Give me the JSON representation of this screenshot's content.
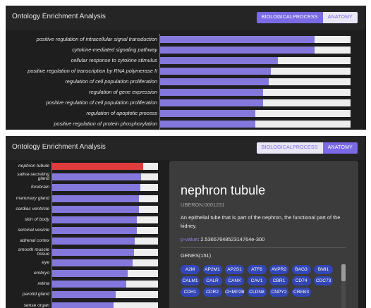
{
  "panel1": {
    "title": "Ontology Enrichment Analysis",
    "tabs": [
      {
        "label": "BIOLOGICALPROCESS",
        "active": true
      },
      {
        "label": "ANATOMY",
        "active": false
      }
    ]
  },
  "panel2": {
    "title": "Ontology Enrichment Analysis",
    "tabs": [
      {
        "label": "BIOLOGICALPROCESS",
        "active": false
      },
      {
        "label": "ANATOMY",
        "active": true
      }
    ]
  },
  "chart_data": [
    {
      "type": "bar",
      "orientation": "horizontal",
      "categories": [
        "positive regulation of intracellular signal transduction",
        "cytokine-mediated signaling pathway",
        "cellular response to cytokine stimulus",
        "positive regulation of transcription by RNA polymerase II",
        "regulation of cell population proliferation",
        "regulation of gene expression",
        "positive regulation of cell population proliferation",
        "regulation of apoptotic process",
        "positive regulation of protein phosphorylation"
      ],
      "values": [
        0.81,
        0.81,
        0.62,
        0.58,
        0.57,
        0.54,
        0.54,
        0.5,
        0.5
      ],
      "colors": {
        "bar": "#8478dc",
        "track": "#eeeeee"
      }
    },
    {
      "type": "bar",
      "orientation": "horizontal",
      "categories": [
        "nephron tubule",
        "saliva-secreting gland",
        "forebrain",
        "mammary gland",
        "cardiac ventricle",
        "skin of body",
        "seminal vesicle",
        "adrenal cortex",
        "smooth muscle tissue",
        "eye",
        "embryo",
        "retina",
        "parotid gland",
        "sense organ"
      ],
      "values": [
        0.86,
        0.84,
        0.83,
        0.82,
        0.82,
        0.8,
        0.8,
        0.78,
        0.77,
        0.76,
        0.71,
        0.7,
        0.6,
        0.58
      ],
      "selected": "nephron tubule",
      "colors": {
        "bar": "#8478dc",
        "selected": "#e03c3c",
        "track": "#eeeeee"
      }
    }
  ],
  "detail": {
    "title": "nephron tubule",
    "id": "UBERON:0001231",
    "description": "An epithelial tube that is part of the nephron, the functional part of the kidney.",
    "pvalue_label": "p-value",
    "pvalue_sep": ": ",
    "pvalue": "2.5365764852314764e-300",
    "genes_label": "GENES(151)",
    "genes": [
      "A2M",
      "AP2M1",
      "AP2S1",
      "ATF6",
      "AVPR2",
      "BAG3",
      "BMI1",
      "CALM1",
      "CALR",
      "CANX",
      "CAV1",
      "CBR1",
      "CD74",
      "CDC73",
      "CDH1",
      "CDR2",
      "CHMP2B",
      "CLDN8",
      "CNPY2",
      "CREB3"
    ]
  }
}
